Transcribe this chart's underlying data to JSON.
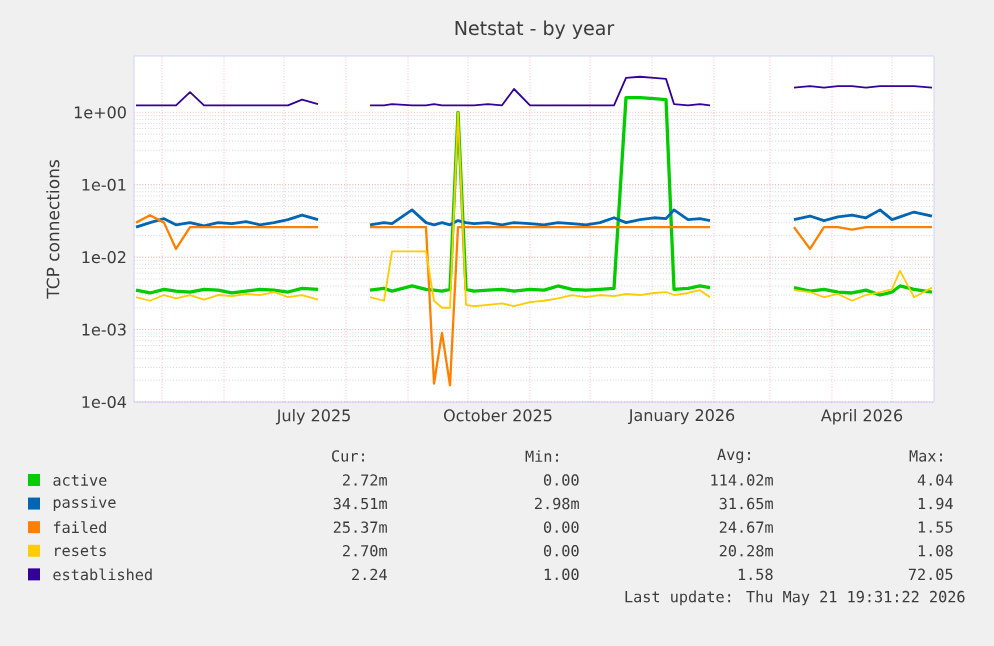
{
  "chart_data": {
    "type": "line",
    "title": "Netstat - by year",
    "ylabel": "TCP connections",
    "log": "y",
    "grid": true,
    "legend": "bottom",
    "marker": "none",
    "line_style": "solid",
    "xlim": [
      "2025-04-17",
      "2026-05-22"
    ],
    "xticks": [
      {
        "value": "2025-05-01",
        "label": null
      },
      {
        "value": "2025-06-01",
        "label": null
      },
      {
        "value": "2025-07-01",
        "label": null
      },
      {
        "value": "2025-07-16",
        "label": "July 2025"
      },
      {
        "value": "2025-08-01",
        "label": null
      },
      {
        "value": "2025-09-01",
        "label": null
      },
      {
        "value": "2025-10-01",
        "label": null
      },
      {
        "value": "2025-10-16",
        "label": "October 2025"
      },
      {
        "value": "2025-11-01",
        "label": null
      },
      {
        "value": "2025-12-01",
        "label": null
      },
      {
        "value": "2026-01-01",
        "label": null
      },
      {
        "value": "2026-01-16",
        "label": "January 2026"
      },
      {
        "value": "2026-02-01",
        "label": null
      },
      {
        "value": "2026-03-01",
        "label": null
      },
      {
        "value": "2026-04-01",
        "label": null
      },
      {
        "value": "2026-04-16",
        "label": "April 2026"
      },
      {
        "value": "2026-05-01",
        "label": null
      }
    ],
    "ylim": [
      0.0001,
      6
    ],
    "yticks": [
      {
        "value": 0.0001,
        "label": "1e-04"
      },
      {
        "value": 0.001,
        "label": "1e-03"
      },
      {
        "value": 0.01,
        "label": "1e-02"
      },
      {
        "value": 0.1,
        "label": "1e-01"
      },
      {
        "value": 1,
        "label": "1e+00"
      }
    ],
    "x": [
      "2025-04-18",
      "2025-04-25",
      "2025-05-02",
      "2025-05-08",
      "2025-05-15",
      "2025-05-22",
      "2025-05-29",
      "2025-06-05",
      "2025-06-12",
      "2025-06-19",
      "2025-06-26",
      "2025-07-03",
      "2025-07-10",
      "2025-07-18",
      "2025-07-30",
      "2025-08-13",
      "2025-08-20",
      "2025-08-24",
      "2025-09-03",
      "2025-09-10",
      "2025-09-14",
      "2025-09-18",
      "2025-09-22",
      "2025-09-26",
      "2025-09-30",
      "2025-10-04",
      "2025-10-11",
      "2025-10-18",
      "2025-10-24",
      "2025-11-01",
      "2025-11-08",
      "2025-11-15",
      "2025-11-22",
      "2025-11-29",
      "2025-12-06",
      "2025-12-13",
      "2025-12-19",
      "2025-12-26",
      "2026-01-02",
      "2026-01-08",
      "2026-01-12",
      "2026-01-19",
      "2026-01-25",
      "2026-01-30",
      "2026-02-20",
      "2026-03-13",
      "2026-03-21",
      "2026-03-28",
      "2026-04-04",
      "2026-04-11",
      "2026-04-18",
      "2026-04-25",
      "2026-05-01",
      "2026-05-05",
      "2026-05-12",
      "2026-05-21"
    ],
    "series": [
      {
        "name": "active",
        "color": "#00cc00",
        "values": [
          0.0035,
          0.0032,
          0.0036,
          0.0034,
          0.0033,
          0.0036,
          0.0035,
          0.0032,
          0.0034,
          0.0036,
          0.0035,
          0.0033,
          0.0037,
          0.0036,
          null,
          0.0035,
          0.0037,
          0.0034,
          0.004,
          0.0036,
          0.0035,
          0.0034,
          0.0036,
          1.0,
          0.0036,
          0.0034,
          0.0035,
          0.0036,
          0.0034,
          0.0036,
          0.0035,
          0.004,
          0.0036,
          0.0035,
          0.0036,
          0.0037,
          1.6,
          1.6,
          1.55,
          1.5,
          0.0036,
          0.0037,
          0.004,
          0.0038,
          null,
          0.0038,
          0.0034,
          0.0036,
          0.0033,
          0.0032,
          0.0035,
          0.003,
          0.0033,
          0.004,
          0.0036,
          0.0033
        ]
      },
      {
        "name": "passive",
        "color": "#0066b3",
        "values": [
          0.026,
          0.03,
          0.034,
          0.028,
          0.03,
          0.027,
          0.03,
          0.029,
          0.031,
          0.028,
          0.03,
          0.033,
          0.038,
          0.033,
          null,
          0.028,
          0.03,
          0.029,
          0.045,
          0.03,
          0.028,
          0.03,
          0.028,
          0.032,
          0.03,
          0.029,
          0.03,
          0.028,
          0.03,
          0.029,
          0.028,
          0.03,
          0.029,
          0.028,
          0.03,
          0.035,
          0.03,
          0.033,
          0.035,
          0.034,
          0.045,
          0.033,
          0.034,
          0.032,
          null,
          0.033,
          0.037,
          0.032,
          0.036,
          0.038,
          0.035,
          0.045,
          0.033,
          0.036,
          0.042,
          0.037
        ]
      },
      {
        "name": "failed",
        "color": "#ff8000",
        "values": [
          0.03,
          0.038,
          0.03,
          0.013,
          0.026,
          0.026,
          0.026,
          0.026,
          0.026,
          0.026,
          0.026,
          0.026,
          0.026,
          0.026,
          null,
          0.026,
          0.026,
          0.026,
          0.026,
          0.026,
          0.00018,
          0.0009,
          0.00017,
          0.026,
          0.026,
          0.026,
          0.026,
          0.026,
          0.026,
          0.026,
          0.026,
          0.026,
          0.026,
          0.026,
          0.026,
          0.026,
          0.026,
          0.026,
          0.026,
          0.026,
          0.026,
          0.026,
          0.026,
          0.026,
          null,
          0.026,
          0.013,
          0.026,
          0.026,
          0.024,
          0.026,
          0.026,
          0.026,
          0.026,
          0.026,
          0.026
        ]
      },
      {
        "name": "resets",
        "color": "#ffcc00",
        "values": [
          0.0028,
          0.0025,
          0.003,
          0.0027,
          0.003,
          0.0026,
          0.003,
          0.0029,
          0.0031,
          0.003,
          0.0033,
          0.0028,
          0.003,
          0.0026,
          null,
          0.0028,
          0.0025,
          0.012,
          0.012,
          0.012,
          0.0025,
          0.002,
          0.002,
          1.0,
          0.0022,
          0.0021,
          0.0022,
          0.0023,
          0.0021,
          0.0024,
          0.0025,
          0.0027,
          0.003,
          0.0028,
          0.003,
          0.0029,
          0.0031,
          0.003,
          0.0032,
          0.0033,
          0.003,
          0.0032,
          0.0035,
          0.0028,
          null,
          0.0035,
          0.0033,
          0.0028,
          0.0031,
          0.0025,
          0.003,
          0.0033,
          0.0036,
          0.0065,
          0.0028,
          0.0038
        ]
      },
      {
        "name": "established",
        "color": "#330099",
        "values": [
          1.25,
          1.25,
          1.25,
          1.25,
          1.9,
          1.25,
          1.25,
          1.25,
          1.25,
          1.25,
          1.25,
          1.25,
          1.5,
          1.3,
          null,
          1.25,
          1.25,
          1.3,
          1.25,
          1.25,
          1.3,
          1.25,
          1.25,
          1.25,
          1.25,
          1.25,
          1.3,
          1.25,
          2.1,
          1.25,
          1.25,
          1.25,
          1.25,
          1.25,
          1.25,
          1.25,
          3.0,
          3.1,
          3.0,
          2.9,
          1.3,
          1.25,
          1.3,
          1.25,
          null,
          2.2,
          2.3,
          2.2,
          2.3,
          2.3,
          2.2,
          2.3,
          2.3,
          2.3,
          2.3,
          2.2
        ]
      }
    ],
    "annotations": [
      "Cur:",
      "Min:",
      "Avg:",
      "Max:",
      "2.72m",
      "0.00",
      "114.02m",
      "4.04",
      "34.51m",
      "2.98m",
      "31.65m",
      "1.94",
      "25.37m",
      "0.00",
      "24.67m",
      "1.55",
      "2.70m",
      "0.00",
      "20.28m",
      "1.08",
      "2.24",
      "1.00",
      "1.58",
      "72.05",
      "Last update: Thu May 21 19:31:22 2026"
    ]
  }
}
